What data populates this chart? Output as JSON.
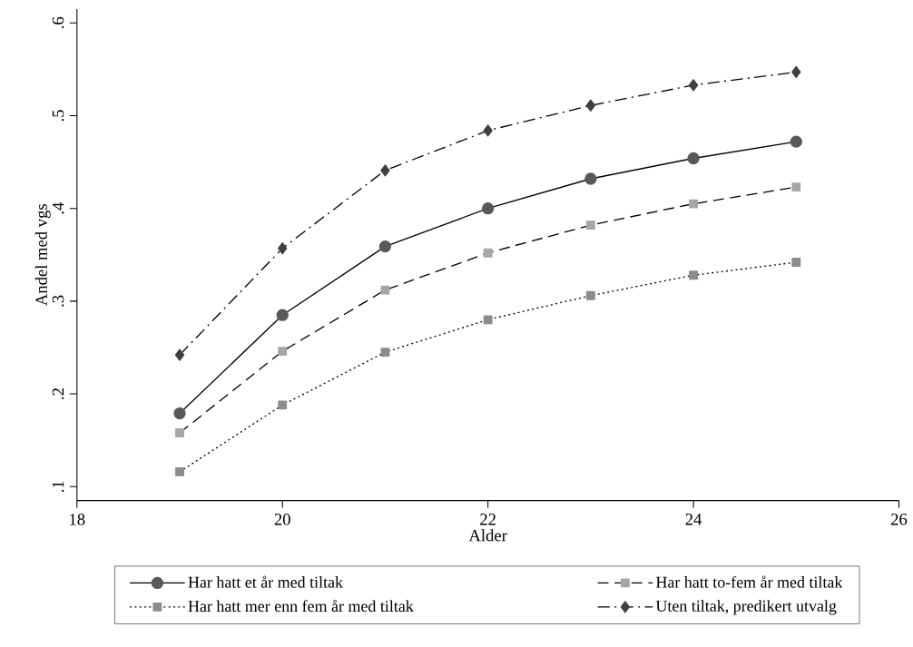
{
  "chart_data": {
    "type": "line",
    "xlabel": "Alder",
    "ylabel": "Andel med vgs",
    "x": [
      19,
      20,
      21,
      22,
      23,
      24,
      25
    ],
    "series": [
      {
        "name": "Har hatt et år med tiltak",
        "color": "#595959",
        "marker": "circle",
        "line_style": "solid",
        "values": [
          0.179,
          0.285,
          0.359,
          0.4,
          0.432,
          0.454,
          0.472
        ]
      },
      {
        "name": "Har hatt to-fem år med tiltak",
        "color": "#a6a6a6",
        "marker": "square",
        "line_style": "dashed",
        "values": [
          0.158,
          0.246,
          0.312,
          0.352,
          0.382,
          0.405,
          0.423
        ]
      },
      {
        "name": "Har hatt mer enn fem år med tiltak",
        "color": "#8c8c8c",
        "marker": "square",
        "line_style": "dotted",
        "values": [
          0.116,
          0.188,
          0.245,
          0.28,
          0.306,
          0.328,
          0.342
        ]
      },
      {
        "name": "Uten tiltak, predikert utvalg",
        "color": "#404040",
        "marker": "diamond",
        "line_style": "dashdot",
        "values": [
          0.242,
          0.357,
          0.441,
          0.484,
          0.511,
          0.533,
          0.547
        ]
      }
    ],
    "xlim": [
      18,
      26
    ],
    "xticks": [
      18,
      20,
      22,
      24,
      26
    ],
    "ylim": [
      0.085,
      0.615
    ],
    "yticks": [
      {
        "value": 0.1,
        "label": ".1"
      },
      {
        "value": 0.2,
        "label": ".2"
      },
      {
        "value": 0.3,
        "label": ".3"
      },
      {
        "value": 0.4,
        "label": ".4"
      },
      {
        "value": 0.5,
        "label": ".5"
      },
      {
        "value": 0.6,
        "label": ".6"
      }
    ],
    "grid": false,
    "legend": "bottom"
  }
}
